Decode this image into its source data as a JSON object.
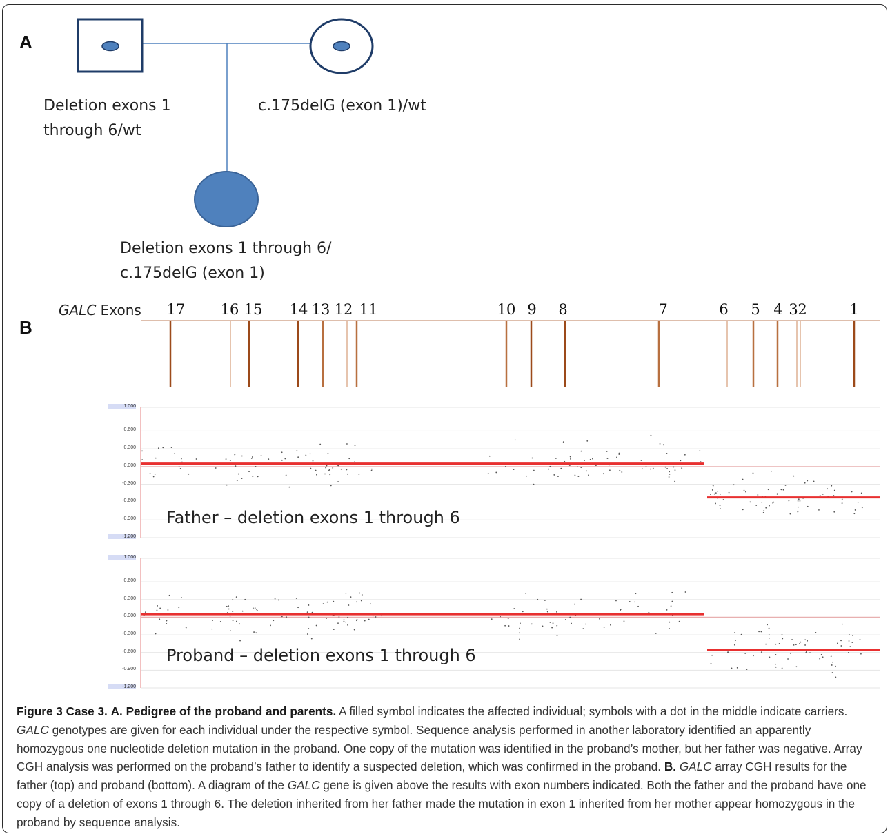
{
  "panel_a": {
    "letter": "A",
    "father_label": [
      "Deletion exons 1",
      "through 6/wt"
    ],
    "mother_label": "c.175delG (exon 1)/wt",
    "proband_label": [
      "Deletion exons 1 through 6/",
      "c.175delG (exon 1)"
    ],
    "symbol_color": "#4f81bd",
    "outline_color": "#1f3c68"
  },
  "panel_b": {
    "letter": "B",
    "gene_label": "GALC",
    "exons_word": "Exons",
    "exons": [
      {
        "label": "17",
        "shade": "dark"
      },
      {
        "label": "16",
        "shade": "light"
      },
      {
        "label": "15",
        "shade": "dark"
      },
      {
        "label": "14",
        "shade": "dark"
      },
      {
        "label": "13",
        "shade": "medium"
      },
      {
        "label": "12",
        "shade": "light"
      },
      {
        "label": "11",
        "shade": "medium"
      },
      {
        "label": "10",
        "shade": "medium"
      },
      {
        "label": "9",
        "shade": "dark"
      },
      {
        "label": "8",
        "shade": "dark"
      },
      {
        "label": "7",
        "shade": "medium"
      },
      {
        "label": "6",
        "shade": "light"
      },
      {
        "label": "5",
        "shade": "medium"
      },
      {
        "label": "4",
        "shade": "medium"
      },
      {
        "label": "3",
        "shade": "light"
      },
      {
        "label": "2",
        "shade": "light"
      },
      {
        "label": "1",
        "shade": "dark"
      }
    ],
    "exon_colors": {
      "dark": "#9c4a1a",
      "medium": "#b87040",
      "light": "#ddb192"
    },
    "line_color": "#e83030"
  },
  "chart_data": [
    {
      "type": "scatter",
      "title": "Father – deletion exons 1 through 6",
      "y_ticks": [
        "1.000",
        "0.600",
        "0.300",
        "0.000",
        "-0.300",
        "-0.600",
        "-0.900",
        "-1.200"
      ],
      "ylim": [
        -1.2,
        1.0
      ],
      "segments": [
        {
          "from_exon": "17",
          "to_exon": "7",
          "mean_log_ratio": 0.05
        },
        {
          "from_exon": "6",
          "to_exon": "1",
          "mean_log_ratio": -0.52
        }
      ]
    },
    {
      "type": "scatter",
      "title": "Proband – deletion exons 1 through 6",
      "y_ticks": [
        "1.000",
        "0.600",
        "0.300",
        "0.000",
        "-0.300",
        "-0.600",
        "-0.900",
        "-1.200"
      ],
      "ylim": [
        -1.2,
        1.0
      ],
      "segments": [
        {
          "from_exon": "17",
          "to_exon": "7",
          "mean_log_ratio": 0.05
        },
        {
          "from_exon": "6",
          "to_exon": "1",
          "mean_log_ratio": -0.55
        }
      ]
    }
  ],
  "caption": {
    "fig_label": "Figure 3 Case 3.",
    "a_label": "A. Pedigree of the proband and parents.",
    "a_text_1": " A filled symbol indicates the affected individual; symbols with a dot in the middle indicate carriers. ",
    "gene": "GALC",
    "a_text_2": " genotypes are given for each individual under the respective symbol. Sequence analysis performed in another laboratory identified an apparently homozygous one nucleotide deletion mutation in the proband. One copy of the mutation was identified in the proband’s mother, but her father was negative. Array CGH analysis was performed on the proband’s father to identify a suspected deletion, which was confirmed in the proband. ",
    "b_label": "B.",
    "b_text_1": " array CGH results for the father (top) and proband (bottom). A diagram of the ",
    "b_text_2": " gene is given above the results with exon numbers indicated. Both the father and the proband have one copy of a deletion of exons 1 through 6. The deletion inherited from her father made the mutation in exon 1 inherited from her mother appear homozygous in the proband by sequence analysis."
  }
}
